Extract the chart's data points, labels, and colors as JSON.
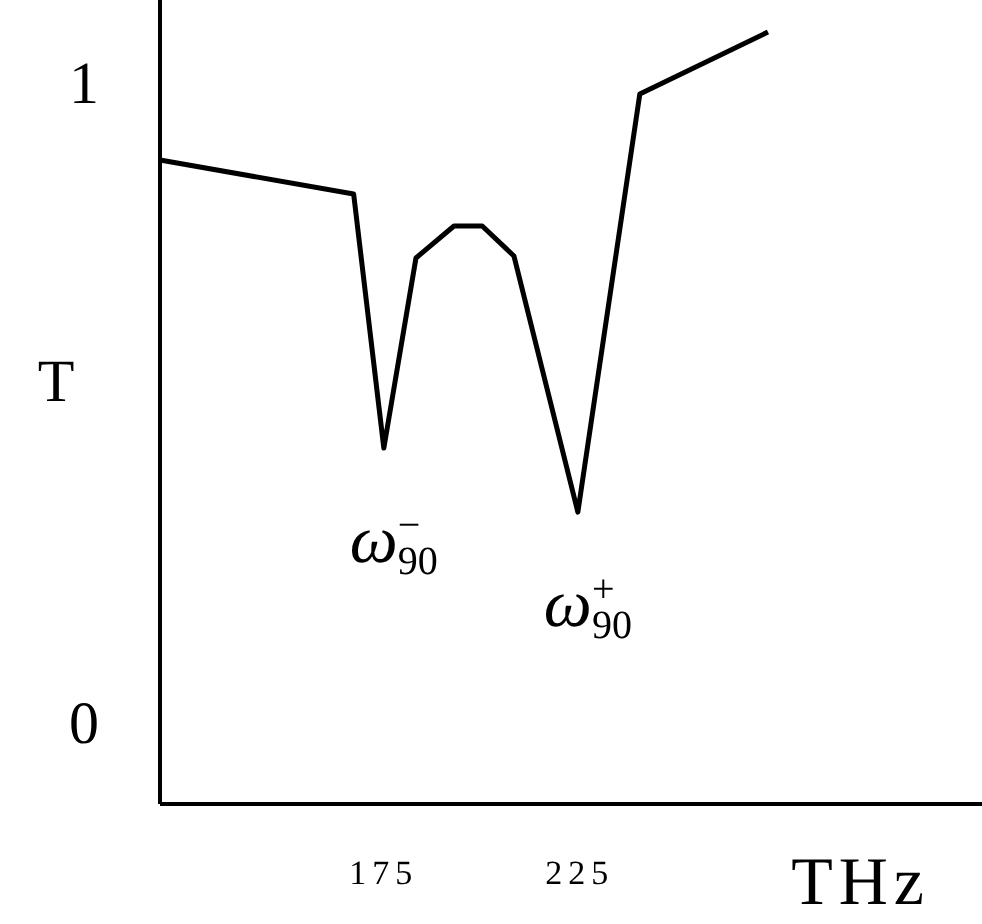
{
  "chart_data": {
    "type": "line",
    "xlabel": "THz",
    "ylabel": "T",
    "x": [
      117.9,
      167.3,
      175.0,
      183.2,
      192.9,
      200.1,
      208.2,
      224.5,
      240.3,
      273.0
    ],
    "values": [
      0.881,
      0.828,
      0.431,
      0.728,
      0.778,
      0.778,
      0.731,
      0.331,
      0.984,
      1.081
    ],
    "color": "#000000",
    "xlim": [
      117.9,
      327.6
    ],
    "ylim": [
      -0.125,
      1.131
    ],
    "xticks": [
      175,
      225
    ],
    "yticks": [
      0,
      1
    ],
    "grid": false,
    "marker": "none",
    "line_style": "solid",
    "annotations": [
      {
        "text": "ω$_{90}$$^{−}$",
        "x": 175.0,
        "y": 0.431
      },
      {
        "text": "ω$_{90}$$^{+}$",
        "x": 224.5,
        "y": 0.331
      }
    ]
  }
}
